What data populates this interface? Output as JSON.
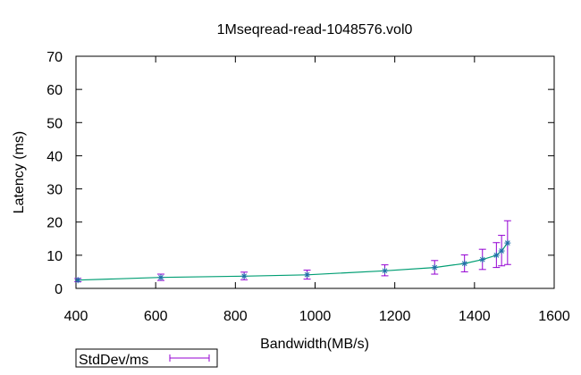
{
  "chart_data": {
    "type": "scatter",
    "title": "1Mseqread-read-1048576.vol0",
    "xlabel": "Bandwidth(MB/s)",
    "ylabel": "Latency (ms)",
    "xlim": [
      400,
      1600
    ],
    "ylim": [
      0,
      70
    ],
    "xticks": [
      400,
      600,
      800,
      1000,
      1200,
      1400,
      1600
    ],
    "yticks": [
      0,
      10,
      20,
      30,
      40,
      50,
      60,
      70
    ],
    "grid": false,
    "legend_position": "bottom-left",
    "series": [
      {
        "name": "StdDev/ms",
        "style": "errorbars",
        "color": "#9400d3",
        "points": [
          {
            "x": 405,
            "y": 2.5,
            "lo": 2.0,
            "hi": 3.0
          },
          {
            "x": 613,
            "y": 3.3,
            "lo": 2.4,
            "hi": 4.3
          },
          {
            "x": 822,
            "y": 3.7,
            "lo": 2.6,
            "hi": 4.9
          },
          {
            "x": 980,
            "y": 4.1,
            "lo": 2.8,
            "hi": 5.5
          },
          {
            "x": 1175,
            "y": 5.3,
            "lo": 3.8,
            "hi": 7.1
          },
          {
            "x": 1300,
            "y": 6.3,
            "lo": 4.3,
            "hi": 8.4
          },
          {
            "x": 1375,
            "y": 7.5,
            "lo": 5.0,
            "hi": 10.1
          },
          {
            "x": 1420,
            "y": 8.7,
            "lo": 5.7,
            "hi": 11.8
          },
          {
            "x": 1455,
            "y": 10.0,
            "lo": 6.3,
            "hi": 13.8
          },
          {
            "x": 1468,
            "y": 11.3,
            "lo": 6.8,
            "hi": 16.0
          },
          {
            "x": 1483,
            "y": 13.7,
            "lo": 7.2,
            "hi": 20.4
          }
        ]
      },
      {
        "name": "",
        "style": "line",
        "color": "#009e73",
        "x": [
          405,
          613,
          822,
          980,
          1175,
          1300,
          1375,
          1420,
          1455,
          1468,
          1483
        ],
        "y": [
          2.5,
          3.3,
          3.7,
          4.1,
          5.3,
          6.3,
          7.5,
          8.7,
          10.0,
          11.3,
          13.7
        ]
      }
    ]
  }
}
